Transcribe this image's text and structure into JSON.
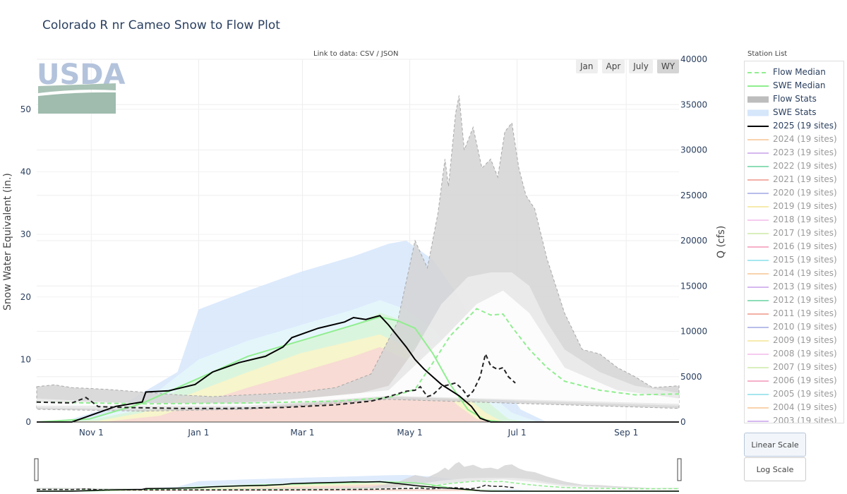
{
  "title": "Colorado R nr Cameo Snow to Flow Plot",
  "link": {
    "prefix": "Link to data:",
    "csv": "CSV",
    "sep": " / ",
    "json": "JSON"
  },
  "station_list_label": "Station List",
  "logo_text": "USDA",
  "range_buttons": [
    {
      "label": "Jan",
      "active": false
    },
    {
      "label": "Apr",
      "active": false
    },
    {
      "label": "July",
      "active": false
    },
    {
      "label": "WY",
      "active": true
    }
  ],
  "scale_buttons": {
    "linear": "Linear Scale",
    "log": "Log Scale"
  },
  "colors": {
    "flow_median": "#90ee90",
    "swe_median": "#90ee90",
    "flow_stats": "#bdbdbd",
    "swe_stats": "#d6e6fb",
    "current": "#000000"
  },
  "legend": [
    {
      "label": "Flow Median",
      "color": "#90ee90",
      "style": "dash"
    },
    {
      "label": "SWE Median",
      "color": "#90ee90",
      "style": "solid"
    },
    {
      "label": "Flow Stats",
      "color": "#bdbdbd",
      "style": "band"
    },
    {
      "label": "SWE Stats",
      "color": "#d6e6fb",
      "style": "band"
    },
    {
      "label": "2025 (19 sites)",
      "color": "#000000",
      "style": "solid"
    },
    {
      "label": "2024 (19 sites)",
      "color": "#f7c08a",
      "style": "faded"
    },
    {
      "label": "2023 (19 sites)",
      "color": "#c59ae8",
      "style": "faded"
    },
    {
      "label": "2022 (19 sites)",
      "color": "#5ccf9a",
      "style": "faded"
    },
    {
      "label": "2021 (19 sites)",
      "color": "#ee8f80",
      "style": "faded"
    },
    {
      "label": "2020 (19 sites)",
      "color": "#9aa3e0",
      "style": "faded"
    },
    {
      "label": "2019 (19 sites)",
      "color": "#f3e28a",
      "style": "faded"
    },
    {
      "label": "2018 (19 sites)",
      "color": "#f1b5e8",
      "style": "faded"
    },
    {
      "label": "2017 (19 sites)",
      "color": "#c9e8a1",
      "style": "faded"
    },
    {
      "label": "2016 (19 sites)",
      "color": "#f28fb1",
      "style": "faded"
    },
    {
      "label": "2015 (19 sites)",
      "color": "#80dcea",
      "style": "faded"
    },
    {
      "label": "2014 (19 sites)",
      "color": "#f7c08a",
      "style": "faded"
    },
    {
      "label": "2013 (19 sites)",
      "color": "#c59ae8",
      "style": "faded"
    },
    {
      "label": "2012 (19 sites)",
      "color": "#5ccf9a",
      "style": "faded"
    },
    {
      "label": "2011 (19 sites)",
      "color": "#ee8f80",
      "style": "faded"
    },
    {
      "label": "2010 (19 sites)",
      "color": "#9aa3e0",
      "style": "faded"
    },
    {
      "label": "2009 (19 sites)",
      "color": "#f3e28a",
      "style": "faded"
    },
    {
      "label": "2008 (19 sites)",
      "color": "#f1b5e8",
      "style": "faded"
    },
    {
      "label": "2007 (19 sites)",
      "color": "#c9e8a1",
      "style": "faded"
    },
    {
      "label": "2006 (19 sites)",
      "color": "#f28fb1",
      "style": "faded"
    },
    {
      "label": "2005 (19 sites)",
      "color": "#80dcea",
      "style": "faded"
    },
    {
      "label": "2004 (19 sites)",
      "color": "#f7c08a",
      "style": "faded"
    },
    {
      "label": "2003 (19 sites)",
      "color": "#c59ae8",
      "style": "faded"
    }
  ],
  "chart_data": {
    "type": "line",
    "ylabel": "Snow Water Equivalent (in.)",
    "y2label": "Q (cfs)",
    "ylim": [
      0,
      58
    ],
    "y2lim": [
      0,
      40000
    ],
    "xlim": [
      0,
      365
    ],
    "x_ticks": [
      {
        "day": 31,
        "label": "Nov 1"
      },
      {
        "day": 92,
        "label": "Jan 1"
      },
      {
        "day": 151,
        "label": "Mar 1"
      },
      {
        "day": 212,
        "label": "May 1"
      },
      {
        "day": 273,
        "label": "Jul 1"
      },
      {
        "day": 335,
        "label": "Sep 1"
      }
    ],
    "y_ticks": [
      0,
      10,
      20,
      30,
      40,
      50
    ],
    "y2_ticks": [
      0,
      5000,
      10000,
      15000,
      20000,
      25000,
      30000,
      35000,
      40000
    ],
    "grid": true,
    "swe_bands": [
      {
        "name": "max",
        "color": "#d6e6fb",
        "lower": [
          [
            0,
            0
          ],
          [
            365,
            0
          ]
        ],
        "upper": [
          [
            0,
            0
          ],
          [
            20,
            0.5
          ],
          [
            50,
            3
          ],
          [
            80,
            8
          ],
          [
            92,
            18
          ],
          [
            120,
            21
          ],
          [
            150,
            24
          ],
          [
            180,
            26.5
          ],
          [
            200,
            28.5
          ],
          [
            210,
            29
          ],
          [
            225,
            26
          ],
          [
            240,
            20
          ],
          [
            255,
            12
          ],
          [
            265,
            6
          ],
          [
            275,
            2
          ],
          [
            290,
            0
          ],
          [
            365,
            0
          ]
        ]
      },
      {
        "name": "p90",
        "color": "#e6f8fa",
        "lower": [
          [
            0,
            0
          ],
          [
            365,
            0
          ]
        ],
        "upper": [
          [
            0,
            0
          ],
          [
            30,
            0.3
          ],
          [
            60,
            3
          ],
          [
            92,
            10
          ],
          [
            120,
            13
          ],
          [
            150,
            15.5
          ],
          [
            180,
            18
          ],
          [
            195,
            19.5
          ],
          [
            210,
            18
          ],
          [
            225,
            15
          ],
          [
            240,
            10
          ],
          [
            255,
            5
          ],
          [
            270,
            1.5
          ],
          [
            285,
            0
          ],
          [
            365,
            0
          ]
        ]
      },
      {
        "name": "p70",
        "color": "#d8f5d8",
        "lower": [
          [
            0,
            0
          ],
          [
            365,
            0
          ]
        ],
        "upper": [
          [
            0,
            0
          ],
          [
            30,
            0.3
          ],
          [
            60,
            2
          ],
          [
            92,
            7
          ],
          [
            120,
            10
          ],
          [
            150,
            13
          ],
          [
            180,
            15.5
          ],
          [
            195,
            17.5
          ],
          [
            210,
            16
          ],
          [
            225,
            13
          ],
          [
            240,
            8
          ],
          [
            255,
            3.5
          ],
          [
            268,
            0.5
          ],
          [
            280,
            0
          ],
          [
            365,
            0
          ]
        ]
      },
      {
        "name": "p50",
        "color": "#fbf5c8",
        "lower": [
          [
            0,
            0
          ],
          [
            365,
            0
          ]
        ],
        "upper": [
          [
            0,
            0
          ],
          [
            35,
            0.2
          ],
          [
            60,
            1.5
          ],
          [
            92,
            5
          ],
          [
            120,
            8
          ],
          [
            150,
            11
          ],
          [
            180,
            13
          ],
          [
            195,
            14
          ],
          [
            210,
            12
          ],
          [
            225,
            9
          ],
          [
            240,
            5
          ],
          [
            255,
            1.5
          ],
          [
            265,
            0
          ],
          [
            365,
            0
          ]
        ]
      },
      {
        "name": "p30",
        "color": "#f8d6d6",
        "lower": [
          [
            0,
            0
          ],
          [
            365,
            0
          ]
        ],
        "upper": [
          [
            0,
            0
          ],
          [
            40,
            0.1
          ],
          [
            70,
            1
          ],
          [
            92,
            3
          ],
          [
            120,
            5.5
          ],
          [
            150,
            8
          ],
          [
            180,
            10.5
          ],
          [
            195,
            12
          ],
          [
            210,
            10
          ],
          [
            225,
            6
          ],
          [
            240,
            2.5
          ],
          [
            250,
            0.5
          ],
          [
            258,
            0
          ],
          [
            365,
            0
          ]
        ]
      }
    ],
    "flow_bands": [
      {
        "name": "max",
        "color": "#d3d3d3",
        "lower": [
          [
            0,
            1400
          ],
          [
            60,
            1200
          ],
          [
            120,
            1400
          ],
          [
            200,
            2500
          ],
          [
            365,
            1500
          ]
        ],
        "upper": [
          [
            0,
            3900
          ],
          [
            10,
            4100
          ],
          [
            20,
            3800
          ],
          [
            40,
            3600
          ],
          [
            60,
            3300
          ],
          [
            80,
            3000
          ],
          [
            100,
            2800
          ],
          [
            120,
            3000
          ],
          [
            150,
            3300
          ],
          [
            170,
            3800
          ],
          [
            190,
            5300
          ],
          [
            205,
            11000
          ],
          [
            215,
            20000
          ],
          [
            222,
            17000
          ],
          [
            228,
            23000
          ],
          [
            232,
            29000
          ],
          [
            234,
            26000
          ],
          [
            238,
            34000
          ],
          [
            240,
            36000
          ],
          [
            243,
            30000
          ],
          [
            248,
            32500
          ],
          [
            253,
            28000
          ],
          [
            258,
            29000
          ],
          [
            262,
            27000
          ],
          [
            266,
            32000
          ],
          [
            270,
            33000
          ],
          [
            274,
            28000
          ],
          [
            278,
            25000
          ],
          [
            283,
            23500
          ],
          [
            290,
            18000
          ],
          [
            300,
            12000
          ],
          [
            310,
            8000
          ],
          [
            320,
            7500
          ],
          [
            330,
            6000
          ],
          [
            340,
            5000
          ],
          [
            350,
            3800
          ],
          [
            365,
            4000
          ]
        ]
      },
      {
        "name": "p90",
        "color": "#ececec",
        "lower": [
          [
            0,
            1600
          ],
          [
            60,
            1400
          ],
          [
            120,
            1600
          ],
          [
            200,
            2800
          ],
          [
            365,
            1800
          ]
        ],
        "upper": [
          [
            0,
            2600
          ],
          [
            60,
            2000
          ],
          [
            120,
            2200
          ],
          [
            180,
            3000
          ],
          [
            200,
            4000
          ],
          [
            215,
            8000
          ],
          [
            230,
            13000
          ],
          [
            245,
            16000
          ],
          [
            258,
            16500
          ],
          [
            270,
            16500
          ],
          [
            280,
            15000
          ],
          [
            290,
            11000
          ],
          [
            300,
            8000
          ],
          [
            320,
            5500
          ],
          [
            340,
            4000
          ],
          [
            365,
            3200
          ]
        ]
      },
      {
        "name": "p50",
        "color": "#ffffff",
        "lower": [
          [
            0,
            1800
          ],
          [
            120,
            1800
          ],
          [
            200,
            2900
          ],
          [
            365,
            2000
          ]
        ],
        "upper": [
          [
            0,
            2200
          ],
          [
            120,
            2000
          ],
          [
            200,
            3500
          ],
          [
            230,
            9000
          ],
          [
            250,
            13000
          ],
          [
            265,
            14500
          ],
          [
            280,
            12000
          ],
          [
            300,
            6000
          ],
          [
            330,
            3500
          ],
          [
            365,
            2600
          ]
        ]
      }
    ],
    "swe_median": [
      [
        0,
        0
      ],
      [
        30,
        0.5
      ],
      [
        60,
        3
      ],
      [
        92,
        7
      ],
      [
        120,
        10.5
      ],
      [
        150,
        13
      ],
      [
        180,
        15.5
      ],
      [
        195,
        16.8
      ],
      [
        205,
        16.2
      ],
      [
        215,
        15
      ],
      [
        225,
        11
      ],
      [
        235,
        6
      ],
      [
        245,
        2
      ],
      [
        255,
        0.3
      ],
      [
        265,
        0
      ],
      [
        365,
        0
      ]
    ],
    "flow_median": [
      [
        0,
        2200
      ],
      [
        60,
        2000
      ],
      [
        120,
        2100
      ],
      [
        170,
        2300
      ],
      [
        200,
        2700
      ],
      [
        215,
        3600
      ],
      [
        225,
        6500
      ],
      [
        235,
        9500
      ],
      [
        245,
        11500
      ],
      [
        250,
        12500
      ],
      [
        258,
        11800
      ],
      [
        265,
        11900
      ],
      [
        270,
        10500
      ],
      [
        280,
        8000
      ],
      [
        290,
        6000
      ],
      [
        300,
        4500
      ],
      [
        320,
        3500
      ],
      [
        340,
        3000
      ],
      [
        365,
        3100
      ]
    ],
    "swe_current": [
      [
        0,
        0
      ],
      [
        20,
        0
      ],
      [
        28,
        0.8
      ],
      [
        35,
        1.5
      ],
      [
        45,
        2.5
      ],
      [
        60,
        3.2
      ],
      [
        62,
        4.8
      ],
      [
        75,
        5
      ],
      [
        90,
        6
      ],
      [
        100,
        8
      ],
      [
        115,
        9.5
      ],
      [
        130,
        10.5
      ],
      [
        140,
        12
      ],
      [
        145,
        13.5
      ],
      [
        160,
        15
      ],
      [
        175,
        16
      ],
      [
        180,
        16.7
      ],
      [
        187,
        16.4
      ],
      [
        195,
        17
      ],
      [
        200,
        15.5
      ],
      [
        210,
        12
      ],
      [
        215,
        10
      ],
      [
        220,
        8.5
      ],
      [
        230,
        6
      ],
      [
        240,
        4.2
      ],
      [
        247,
        2.5
      ],
      [
        252,
        0.6
      ],
      [
        258,
        0
      ],
      [
        365,
        0
      ]
    ],
    "flow_current": [
      [
        0,
        2200
      ],
      [
        20,
        2100
      ],
      [
        28,
        2700
      ],
      [
        35,
        1700
      ],
      [
        50,
        1600
      ],
      [
        80,
        1500
      ],
      [
        110,
        1500
      ],
      [
        140,
        1600
      ],
      [
        170,
        1900
      ],
      [
        190,
        2300
      ],
      [
        200,
        2800
      ],
      [
        210,
        3400
      ],
      [
        215,
        3500
      ],
      [
        218,
        3900
      ],
      [
        222,
        2800
      ],
      [
        225,
        3000
      ],
      [
        230,
        3900
      ],
      [
        238,
        4300
      ],
      [
        242,
        3600
      ],
      [
        245,
        2800
      ],
      [
        248,
        3400
      ],
      [
        252,
        5000
      ],
      [
        255,
        7500
      ],
      [
        258,
        6200
      ],
      [
        262,
        5800
      ],
      [
        265,
        6000
      ],
      [
        268,
        5000
      ],
      [
        272,
        4300
      ]
    ]
  }
}
